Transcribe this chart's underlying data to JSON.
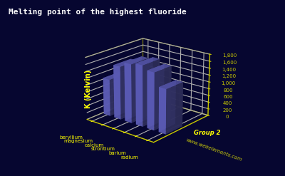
{
  "title": "Melting point of the highest fluoride",
  "elements": [
    "beryllium",
    "magnesium",
    "calcium",
    "strontium",
    "barium",
    "radium"
  ],
  "values": [
    1073,
    1536,
    1691,
    1750,
    1641,
    1273
  ],
  "ylabel": "K (Kelvin)",
  "xlabel": "Group 2",
  "ymax": 1800,
  "yticks": [
    0,
    200,
    400,
    600,
    800,
    1000,
    1200,
    1400,
    1600,
    1800
  ],
  "background_color": "#060630",
  "bar_color_top": "#8888ee",
  "bar_color_side": "#6666cc",
  "base_color": "#8b0000",
  "grid_color": "#cccc00",
  "text_color": "#ffff00",
  "title_color": "#ffffff",
  "website": "www.webelements.com"
}
